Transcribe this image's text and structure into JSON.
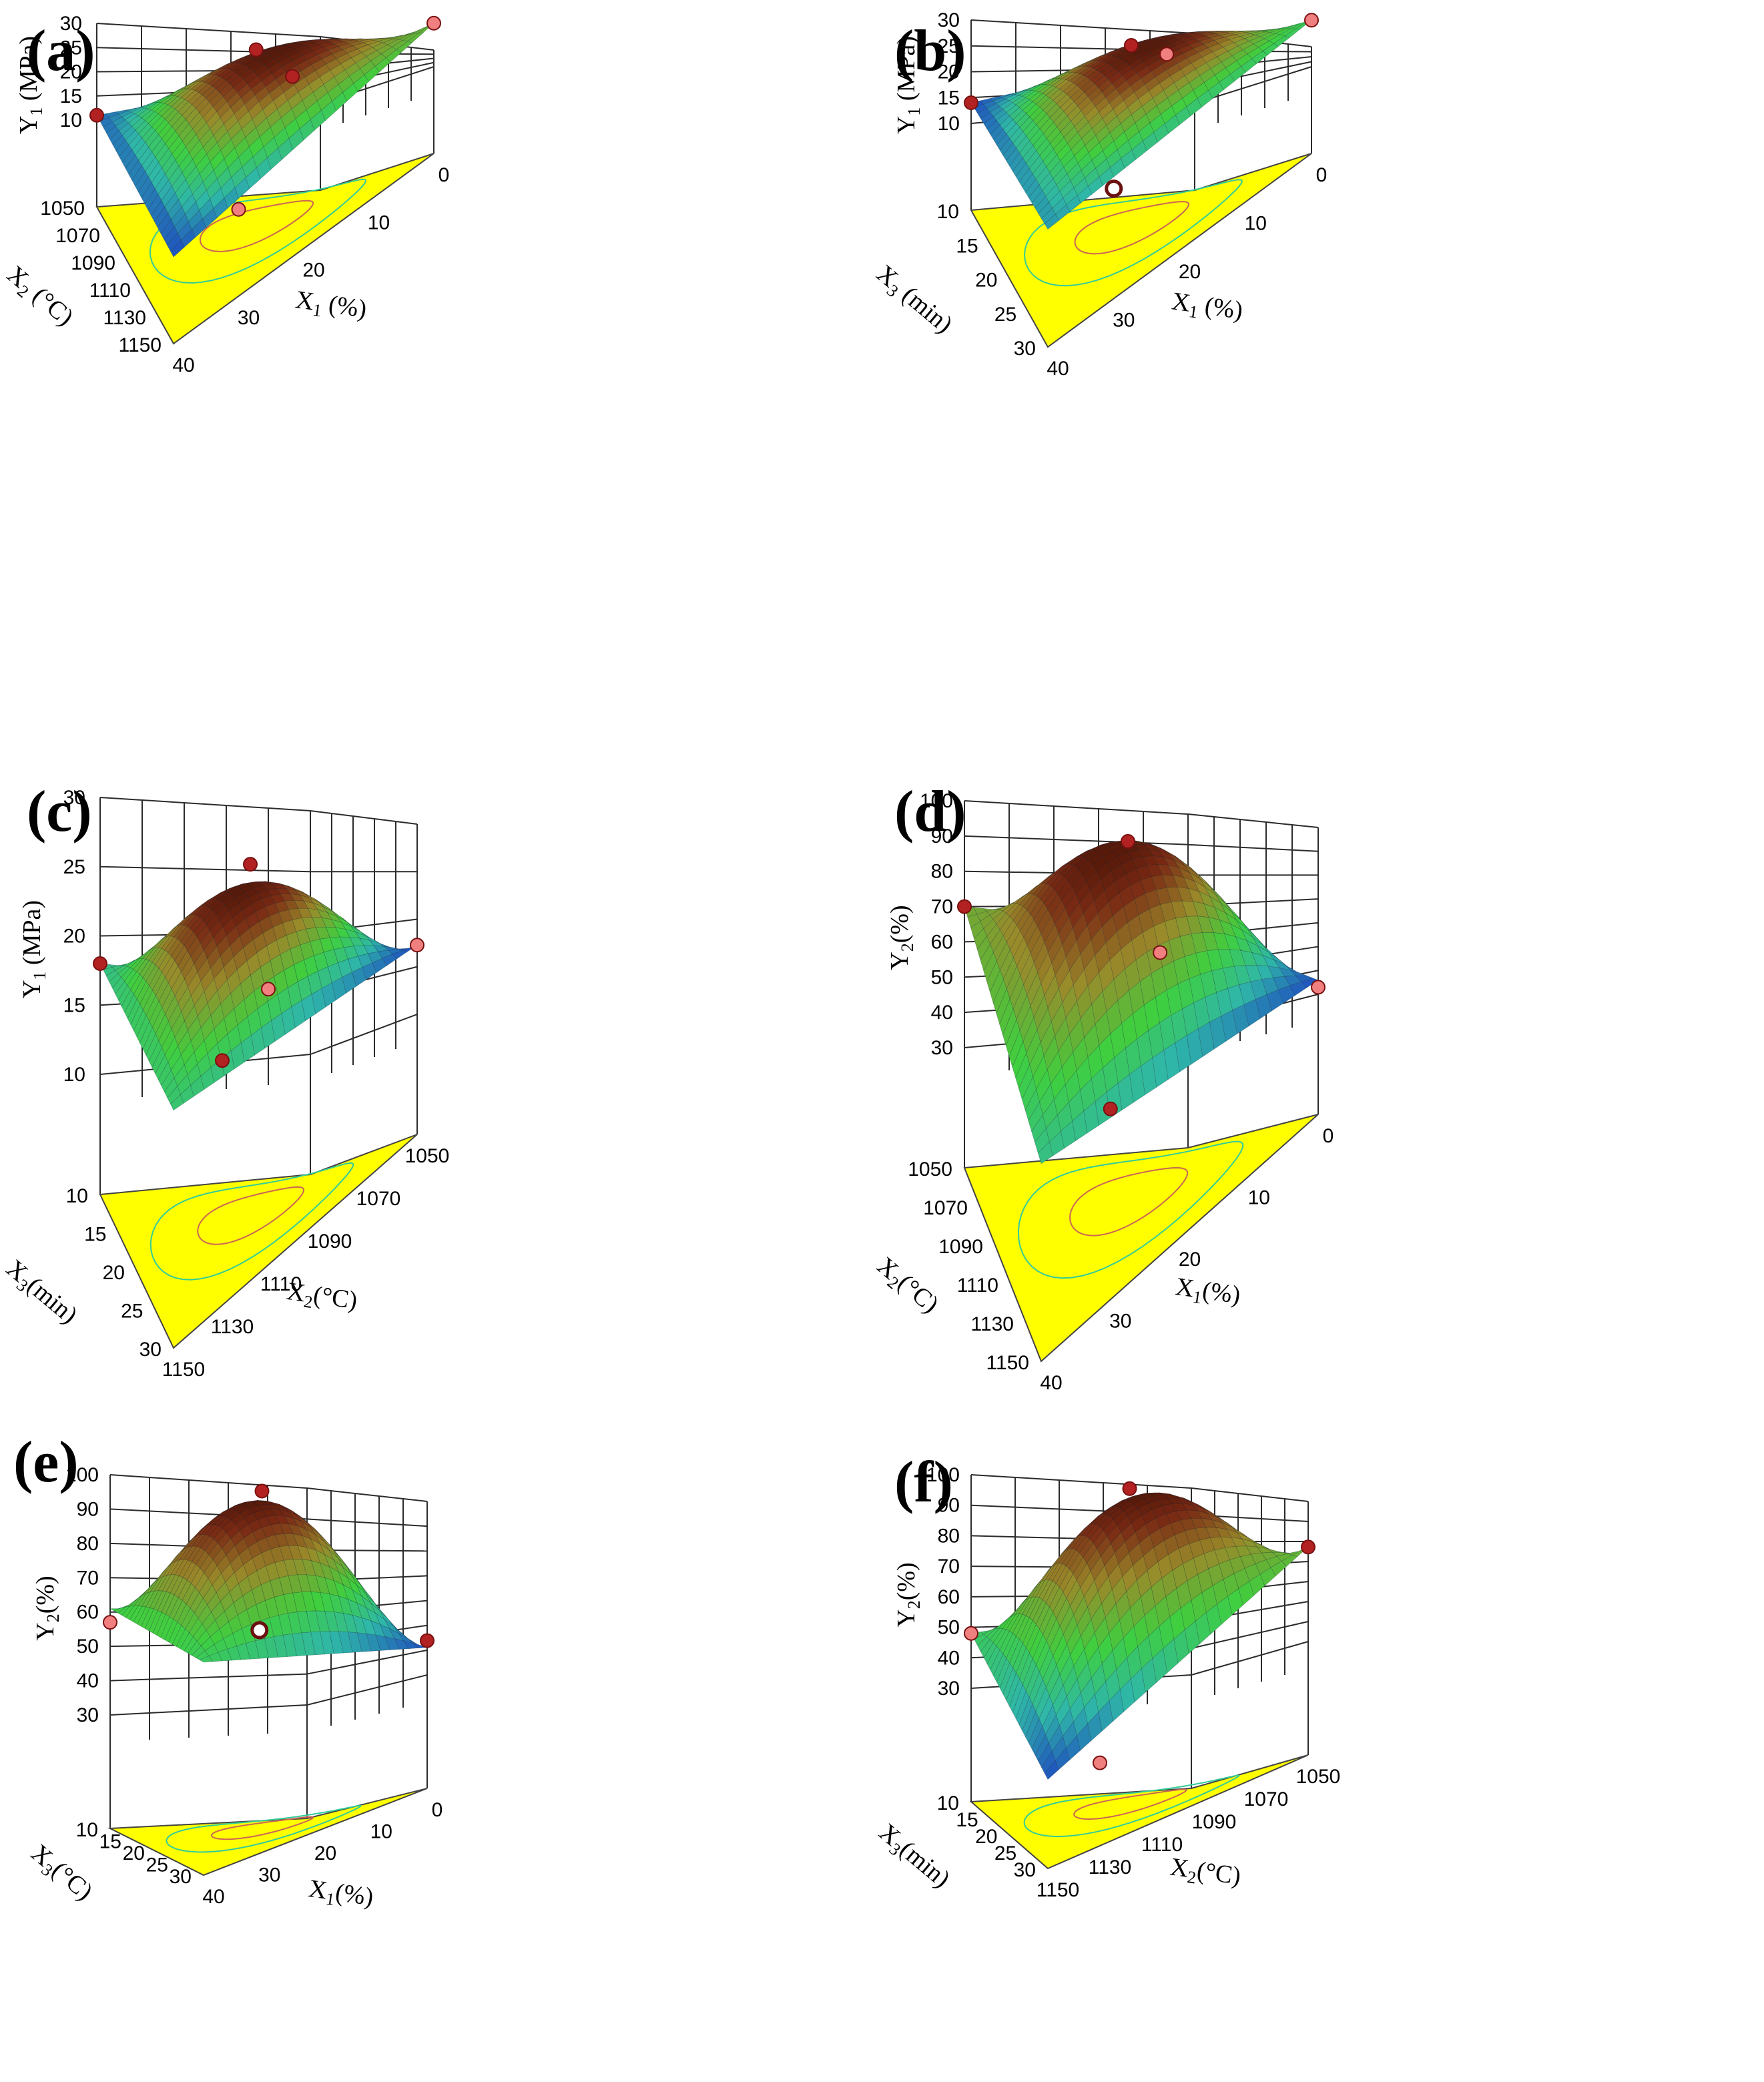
{
  "colors": {
    "floor": "#ffff00",
    "contour_outer": "#33cc99",
    "contour_inner": "#cc6655",
    "surface_low": "#1f4fbf",
    "surface_mid": "#3fcf3f",
    "surface_high": "#8b2a18",
    "point_above": "#b22222",
    "point_below": "#f08080",
    "grid": "#2b2b2b"
  },
  "chart_data": [
    {
      "type": "surface3d",
      "panel_label": "(a)",
      "ylabel": "Y1 (MPa)",
      "xlabel": "X1 (%)",
      "zlabel": "X2 (°C)",
      "y_ticks": [
        "10",
        "15",
        "20",
        "25",
        "30"
      ],
      "ylim": [
        10,
        30
      ],
      "x_ticks": [
        "0",
        "10",
        "20",
        "30",
        "40"
      ],
      "z_ticks": [
        "1050",
        "1070",
        "1090",
        "1110",
        "1130",
        "1150"
      ],
      "corner_values": [
        11.0,
        10.0,
        16.0,
        19.0
      ],
      "peak_value": 26.0,
      "design_points": [
        {
          "x": 40,
          "z": 1050,
          "y": 11,
          "kind": "above"
        },
        {
          "x": 30,
          "z": 1150,
          "y": 10,
          "kind": "below"
        },
        {
          "x": 20,
          "z": 1100,
          "y": 28,
          "kind": "above"
        },
        {
          "x": 5,
          "z": 1050,
          "y": 16,
          "kind": "above"
        },
        {
          "x": 0,
          "z": 1150,
          "y": 19,
          "kind": "below"
        }
      ]
    },
    {
      "type": "surface3d",
      "panel_label": "(b)",
      "ylabel": "Y1 (MPa)",
      "xlabel": "X1 (%)",
      "zlabel": "X3 (min)",
      "y_ticks": [
        "10",
        "15",
        "20",
        "25",
        "30"
      ],
      "ylim": [
        10,
        30
      ],
      "x_ticks": [
        "0",
        "10",
        "20",
        "30",
        "40"
      ],
      "z_ticks": [
        "10",
        "15",
        "20",
        "25",
        "30"
      ],
      "corner_values": [
        14.0,
        16.0,
        20.0,
        19.0
      ],
      "peak_value": 26.5,
      "design_points": [
        {
          "x": 40,
          "z": 10,
          "y": 14,
          "kind": "above"
        },
        {
          "x": 30,
          "z": 30,
          "y": 14.5,
          "kind": "open"
        },
        {
          "x": 20,
          "z": 20,
          "y": 28,
          "kind": "above"
        },
        {
          "x": 5,
          "z": 10,
          "y": 20,
          "kind": "below"
        },
        {
          "x": 0,
          "z": 30,
          "y": 19,
          "kind": "below"
        }
      ]
    },
    {
      "type": "surface3d",
      "panel_label": "(c)",
      "ylabel": "Y1 (MPa)",
      "xlabel": "X2(°C)",
      "zlabel": "X3(min)",
      "y_ticks": [
        "10",
        "15",
        "20",
        "25",
        "30"
      ],
      "ylim": [
        10,
        30
      ],
      "x_ticks": [
        "1050",
        "1070",
        "1090",
        "1110",
        "1130",
        "1150"
      ],
      "z_ticks": [
        "10",
        "15",
        "20",
        "25",
        "30"
      ],
      "corner_values": [
        18.0,
        18.5,
        15.0,
        15.0
      ],
      "peak_value": 25.0,
      "design_points": [
        {
          "x": 1150,
          "z": 10,
          "y": 18,
          "kind": "above"
        },
        {
          "x": 1130,
          "z": 30,
          "y": 19,
          "kind": "above"
        },
        {
          "x": 1100,
          "z": 20,
          "y": 26.5,
          "kind": "above"
        },
        {
          "x": 1070,
          "z": 10,
          "y": 15,
          "kind": "below"
        },
        {
          "x": 1050,
          "z": 30,
          "y": 15,
          "kind": "below"
        }
      ]
    },
    {
      "type": "surface3d",
      "panel_label": "(d)",
      "ylabel": "Y2(%)",
      "xlabel": "X1(%)",
      "zlabel": "X2(°C)",
      "y_ticks": [
        "30",
        "40",
        "50",
        "60",
        "70",
        "80",
        "90",
        "100"
      ],
      "ylim": [
        30,
        100
      ],
      "x_ticks": [
        "0",
        "10",
        "20",
        "30",
        "40"
      ],
      "z_ticks": [
        "1050",
        "1070",
        "1090",
        "1110",
        "1130",
        "1150"
      ],
      "corner_values": [
        70.0,
        52.0,
        58.0,
        34.0
      ],
      "peak_value": 94.0,
      "design_points": [
        {
          "x": 40,
          "z": 1050,
          "y": 70,
          "kind": "above"
        },
        {
          "x": 30,
          "z": 1150,
          "y": 50,
          "kind": "above"
        },
        {
          "x": 20,
          "z": 1100,
          "y": 97,
          "kind": "above"
        },
        {
          "x": 5,
          "z": 1050,
          "y": 52,
          "kind": "below"
        },
        {
          "x": 0,
          "z": 1150,
          "y": 32,
          "kind": "below"
        }
      ]
    },
    {
      "type": "surface3d",
      "panel_label": "(e)",
      "ylabel": "Y2(%)",
      "xlabel": "X1(%)",
      "zlabel": "X3(°C)",
      "y_ticks": [
        "30",
        "40",
        "50",
        "60",
        "70",
        "80",
        "90",
        "100"
      ],
      "ylim": [
        30,
        100
      ],
      "x_ticks": [
        "0",
        "10",
        "20",
        "30",
        "40"
      ],
      "z_ticks": [
        "10",
        "15",
        "20",
        "25",
        "30"
      ],
      "corner_values": [
        61.0,
        59.0,
        58.0,
        38.0
      ],
      "peak_value": 92.0,
      "design_points": [
        {
          "x": 40,
          "z": 10,
          "y": 57,
          "kind": "below"
        },
        {
          "x": 30,
          "z": 30,
          "y": 62,
          "kind": "open"
        },
        {
          "x": 20,
          "z": 20,
          "y": 95,
          "kind": "above"
        },
        {
          "x": 0,
          "z": 30,
          "y": 40,
          "kind": "above"
        }
      ]
    },
    {
      "type": "surface3d",
      "panel_label": "(f)",
      "ylabel": "Y2(%)",
      "xlabel": "X2(°C)",
      "zlabel": "X3(min)",
      "y_ticks": [
        "30",
        "40",
        "50",
        "60",
        "70",
        "80",
        "90",
        "100"
      ],
      "ylim": [
        30,
        100
      ],
      "x_ticks": [
        "1050",
        "1070",
        "1090",
        "1110",
        "1130",
        "1150"
      ],
      "z_ticks": [
        "10",
        "15",
        "20",
        "25",
        "30"
      ],
      "corner_values": [
        48.0,
        22.0,
        55.0,
        61.0
      ],
      "peak_value": 92.0,
      "design_points": [
        {
          "x": 1150,
          "z": 10,
          "y": 48,
          "kind": "below"
        },
        {
          "x": 1130,
          "z": 30,
          "y": 20,
          "kind": "below"
        },
        {
          "x": 1100,
          "z": 20,
          "y": 96,
          "kind": "above"
        },
        {
          "x": 1050,
          "z": 30,
          "y": 61,
          "kind": "above"
        }
      ]
    }
  ]
}
